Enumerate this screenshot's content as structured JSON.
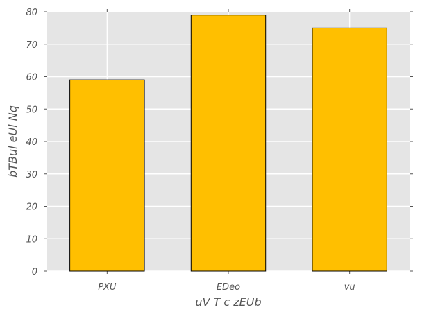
{
  "chart_data": {
    "type": "bar",
    "title": "",
    "xlabel": "uV  T c zEUb",
    "ylabel": "bTBul eUl  Nq",
    "categories": [
      "PXU",
      "EDeo",
      "vu"
    ],
    "values": [
      59,
      79,
      75
    ],
    "ylim": [
      0,
      80
    ],
    "yticks": [
      0,
      10,
      20,
      30,
      40,
      50,
      60,
      70,
      80
    ],
    "grid": true,
    "legend": "none",
    "colors": {
      "bar_fill": "#FFBF00",
      "bar_edge": "#000000",
      "plot_background": "#E5E5E5",
      "grid": "#FFFFFF",
      "text": "#555555"
    }
  }
}
